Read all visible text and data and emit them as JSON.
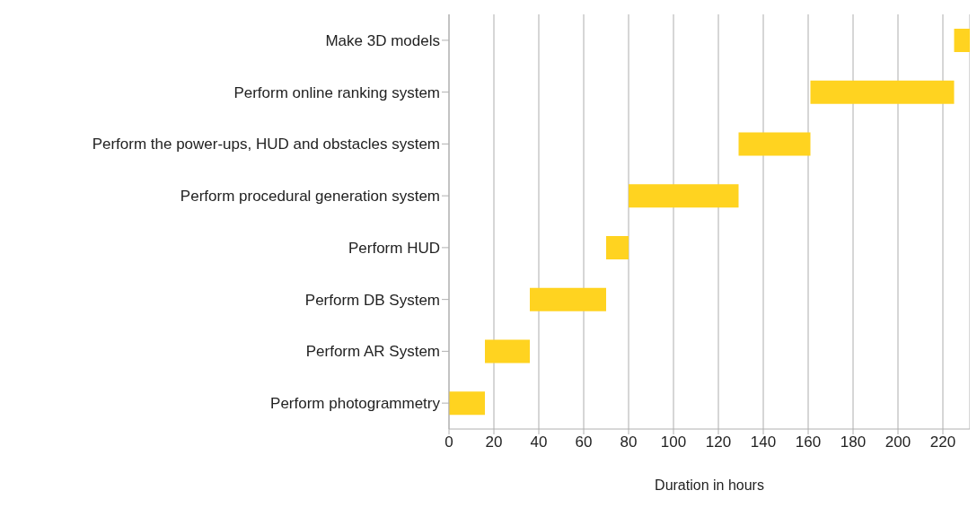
{
  "chart_data": {
    "type": "bar",
    "orientation": "horizontal",
    "xlabel": "Duration in hours",
    "categories": [
      "Make 3D models",
      "Perform online ranking system",
      "Perform the power-ups, HUD and obstacles system",
      "Perform procedural generation system",
      "Perform HUD",
      "Perform DB System",
      "Perform AR System",
      "Perform photogrammetry"
    ],
    "base": [
      225,
      161,
      129,
      80,
      70,
      36,
      16,
      0
    ],
    "values": [
      7,
      64,
      32,
      49,
      10,
      34,
      20,
      16
    ],
    "color": "#ffd320",
    "xlim": [
      0,
      232
    ],
    "xticks": [
      0,
      20,
      40,
      60,
      80,
      100,
      120,
      140,
      160,
      180,
      200,
      220
    ],
    "grid": "x"
  }
}
